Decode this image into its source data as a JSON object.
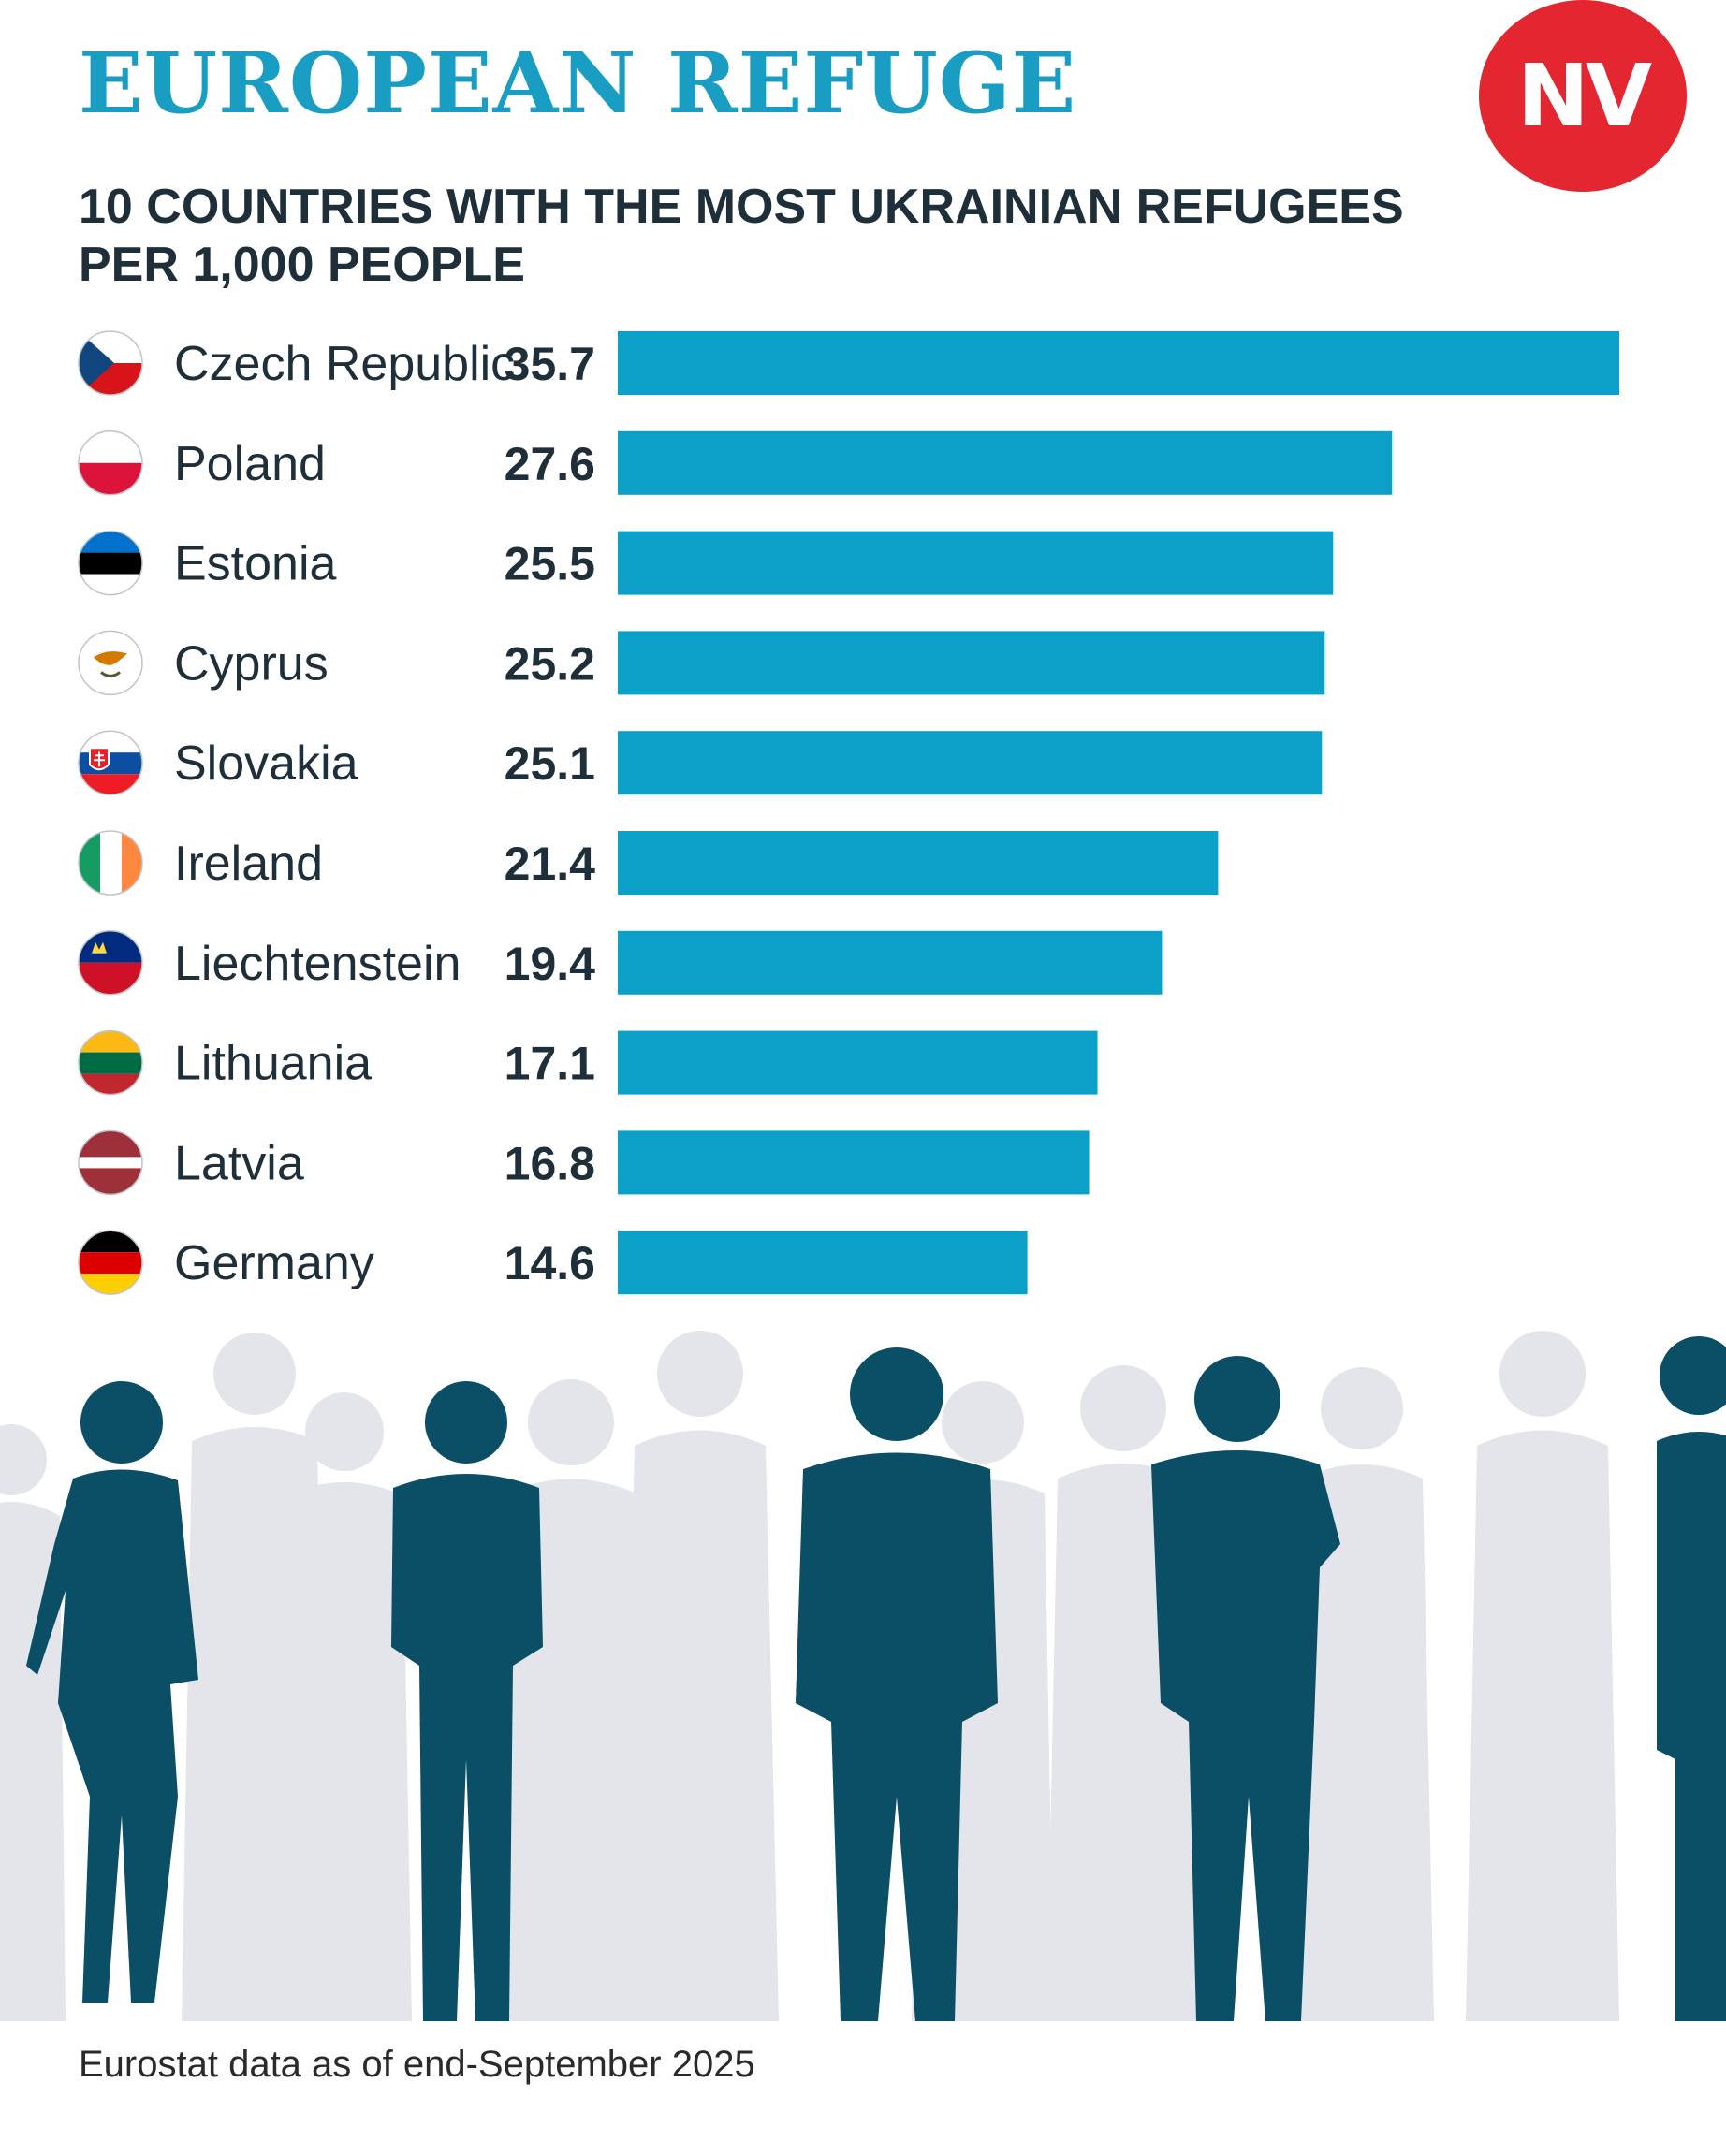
{
  "header": {
    "title": "EUROPEAN REFUGE",
    "subtitle_line1": "10 COUNTRIES WITH THE MOST UKRAINIAN REFUGEES",
    "subtitle_line2": "PER 1,000 PEOPLE",
    "logo_text": "NV"
  },
  "chart_data": {
    "type": "bar",
    "orientation": "horizontal",
    "title": "10 COUNTRIES WITH THE MOST UKRAINIAN REFUGEES PER 1,000 PEOPLE",
    "categories": [
      "Czech Republic",
      "Poland",
      "Estonia",
      "Cyprus",
      "Slovakia",
      "Ireland",
      "Liechtenstein",
      "Lithuania",
      "Latvia",
      "Germany"
    ],
    "values": [
      35.7,
      27.6,
      25.5,
      25.2,
      25.1,
      21.4,
      19.4,
      17.1,
      16.8,
      14.6
    ],
    "value_labels": [
      "35.7",
      "27.6",
      "25.5",
      "25.2",
      "25.1",
      "21.4",
      "19.4",
      "17.1",
      "16.8",
      "14.6"
    ],
    "flag_icons": [
      "czech-flag-icon",
      "poland-flag-icon",
      "estonia-flag-icon",
      "cyprus-flag-icon",
      "slovakia-flag-icon",
      "ireland-flag-icon",
      "liechtenstein-flag-icon",
      "lithuania-flag-icon",
      "latvia-flag-icon",
      "germany-flag-icon"
    ],
    "xlim": [
      0,
      35.7
    ],
    "grid": false,
    "legend": "none",
    "bar_color": "#0aa0c8"
  },
  "colors": {
    "title": "#1a9dc3",
    "bar": "#0aa0c8",
    "logo": "#e3262f",
    "silhouette_dark": "#0b4f66",
    "silhouette_light": "#e3e5ea"
  },
  "footer": {
    "source": "Eurostat data as of end-September 2025"
  }
}
